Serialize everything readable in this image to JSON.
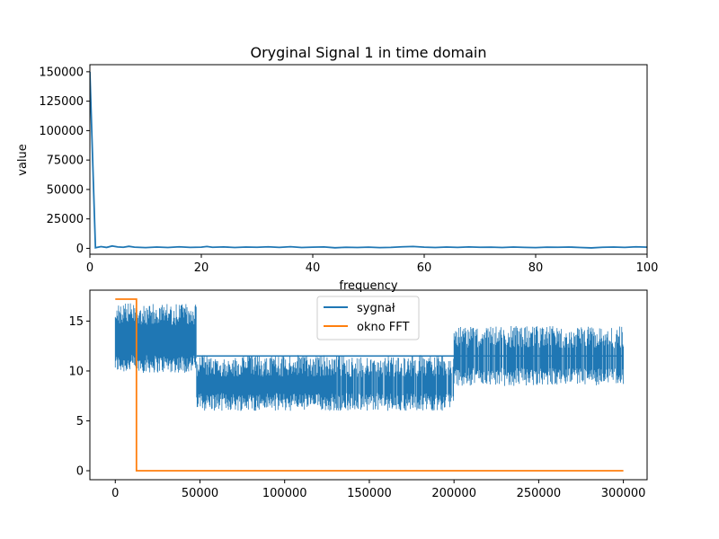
{
  "chart_data": [
    {
      "type": "line",
      "title": "Oryginal Signal 1 in time domain",
      "xlabel": "frequency",
      "ylabel": "value",
      "xlim": [
        0,
        100
      ],
      "ylim": [
        -5000,
        156000
      ],
      "xticks": [
        0,
        20,
        40,
        60,
        80,
        100
      ],
      "xtick_labels": [
        "0",
        "20",
        "40",
        "60",
        "80",
        "100"
      ],
      "yticks": [
        0,
        25000,
        50000,
        75000,
        100000,
        125000,
        150000
      ],
      "ytick_labels": [
        "0",
        "25000",
        "50000",
        "75000",
        "100000",
        "125000",
        "150000"
      ],
      "grid": false,
      "series": [
        {
          "color": "#1f77b4",
          "x": [
            0,
            1,
            2,
            3,
            4,
            5,
            6,
            7,
            8,
            10,
            12,
            14,
            16,
            18,
            20,
            21,
            22,
            24,
            26,
            28,
            30,
            32,
            34,
            36,
            38,
            40,
            42,
            44,
            46,
            48,
            50,
            52,
            54,
            56,
            58,
            60,
            62,
            64,
            66,
            68,
            70,
            72,
            74,
            76,
            78,
            80,
            82,
            84,
            86,
            88,
            90,
            92,
            94,
            96,
            98,
            100
          ],
          "y": [
            150000,
            500,
            1500,
            800,
            2000,
            1200,
            900,
            1700,
            1000,
            600,
            1100,
            700,
            1300,
            800,
            1000,
            1600,
            900,
            1200,
            700,
            1100,
            900,
            1300,
            800,
            1400,
            700,
            1000,
            1200,
            500,
            900,
            700,
            1000,
            600,
            800,
            1300,
            1600,
            1000,
            700,
            1100,
            800,
            1200,
            900,
            1000,
            700,
            1100,
            800,
            600,
            1000,
            900,
            1100,
            700,
            400,
            900,
            1100,
            800,
            1300,
            1000
          ]
        }
      ]
    },
    {
      "type": "line",
      "title": "",
      "xlabel": "",
      "ylabel": "",
      "xlim": [
        -15000,
        314000
      ],
      "ylim": [
        -0.9,
        18.1
      ],
      "xticks": [
        0,
        50000,
        100000,
        150000,
        200000,
        250000,
        300000
      ],
      "xtick_labels": [
        "0",
        "50000",
        "100000",
        "150000",
        "200000",
        "250000",
        "300000"
      ],
      "yticks": [
        0,
        5,
        10,
        15
      ],
      "ytick_labels": [
        "0",
        "5",
        "10",
        "15"
      ],
      "grid": false,
      "legend": {
        "position": "top-center"
      },
      "series": [
        {
          "name": "sygnał",
          "color": "#1f77b4",
          "segments": [
            {
              "x": [
                0,
                48000
              ],
              "low": 9.8,
              "high": 16.8
            },
            {
              "x": [
                48000,
                130000
              ],
              "low": 6.0,
              "high": 11.6
            },
            {
              "x": [
                130000,
                200000
              ],
              "low": 6.0,
              "high": 11.6
            },
            {
              "x": [
                200000,
                300000
              ],
              "low": 8.5,
              "high": 14.5
            }
          ],
          "baseline": 11.5
        },
        {
          "name": "okno FFT",
          "color": "#ff7f0e",
          "x": [
            0,
            12500,
            12500,
            300000
          ],
          "y": [
            17.2,
            17.2,
            0,
            0
          ]
        }
      ]
    }
  ]
}
